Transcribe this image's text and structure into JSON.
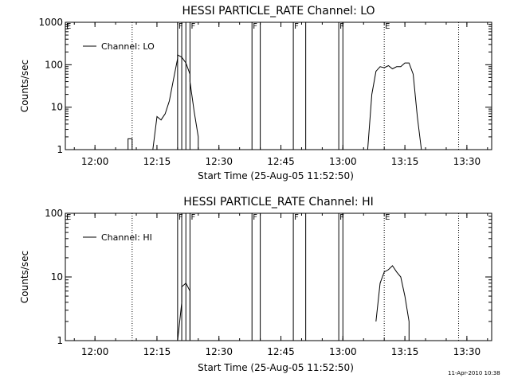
{
  "footer_stamp": "11-Apr-2010 10:38",
  "chart_data": [
    {
      "type": "line",
      "title": "HESSI PARTICLE_RATE Channel: LO",
      "xlabel": "Start Time (25-Aug-05 11:52:50)",
      "ylabel": "Counts/sec",
      "yscale": "log",
      "ylim": [
        1,
        1000
      ],
      "xlim": [
        "11:52:50",
        "13:36:00"
      ],
      "x_ticks": [
        "12:00",
        "12:15",
        "12:30",
        "12:45",
        "13:00",
        "13:15",
        "13:30"
      ],
      "y_ticks": [
        "1",
        "10",
        "100",
        "1000"
      ],
      "legend": {
        "label": "Channel: LO",
        "placement": "top-left"
      },
      "dotted_markers": [
        "12:09",
        "13:10",
        "13:28"
      ],
      "solid_markers": [
        "12:20",
        "12:21",
        "12:22",
        "12:23",
        "12:38",
        "12:40",
        "12:48",
        "12:51",
        "12:59",
        "13:00"
      ],
      "marker_labels": [
        {
          "text": "F",
          "time": "12:20"
        },
        {
          "text": "F",
          "time": "12:23"
        },
        {
          "text": "F",
          "time": "12:38"
        },
        {
          "text": "F",
          "time": "12:48"
        },
        {
          "text": "F",
          "time": "12:59"
        },
        {
          "text": "E",
          "time": "13:10"
        }
      ],
      "edge_labels": [
        {
          "text": "E",
          "side": "left"
        }
      ],
      "series": [
        {
          "segments": [
            [
              [
                "12:08",
                "1"
              ],
              [
                "12:08",
                "1.8"
              ],
              [
                "12:09",
                "1.8"
              ],
              [
                "12:09",
                "1.8"
              ],
              [
                "12:09",
                "1"
              ]
            ],
            [
              [
                "12:14",
                "1"
              ],
              [
                "12:15",
                "6"
              ],
              [
                "12:16",
                "5"
              ],
              [
                "12:17",
                "7"
              ],
              [
                "12:18",
                "14"
              ],
              [
                "12:19",
                "45"
              ],
              [
                "12:20",
                "140"
              ],
              [
                "12:20",
                "170"
              ],
              [
                "12:21",
                "150"
              ],
              [
                "12:22",
                "110"
              ],
              [
                "12:23",
                "60"
              ],
              [
                "12:23",
                "40"
              ],
              [
                "12:24",
                "8"
              ],
              [
                "12:25",
                "2"
              ],
              [
                "12:25",
                "1"
              ]
            ],
            [
              [
                "13:06",
                "1"
              ],
              [
                "13:07",
                "20"
              ],
              [
                "13:08",
                "70"
              ],
              [
                "13:09",
                "90"
              ],
              [
                "13:10",
                "85"
              ],
              [
                "13:11",
                "95"
              ],
              [
                "13:12",
                "80"
              ],
              [
                "13:13",
                "90"
              ],
              [
                "13:14",
                "90"
              ],
              [
                "13:15",
                "110"
              ],
              [
                "13:16",
                "110"
              ],
              [
                "13:17",
                "60"
              ],
              [
                "13:18",
                "6"
              ],
              [
                "13:19",
                "1"
              ]
            ]
          ]
        }
      ]
    },
    {
      "type": "line",
      "title": "HESSI PARTICLE_RATE Channel: HI",
      "xlabel": "Start Time (25-Aug-05 11:52:50)",
      "ylabel": "Counts/sec",
      "yscale": "log",
      "ylim": [
        1,
        100
      ],
      "xlim": [
        "11:52:50",
        "13:36:00"
      ],
      "x_ticks": [
        "12:00",
        "12:15",
        "12:30",
        "12:45",
        "13:00",
        "13:15",
        "13:30"
      ],
      "y_ticks": [
        "1",
        "10",
        "100"
      ],
      "legend": {
        "label": "Channel: HI",
        "placement": "top-left"
      },
      "dotted_markers": [
        "12:09",
        "13:10",
        "13:28"
      ],
      "solid_markers": [
        "12:20",
        "12:21",
        "12:22",
        "12:23",
        "12:38",
        "12:40",
        "12:48",
        "12:51",
        "12:59",
        "13:00"
      ],
      "marker_labels": [
        {
          "text": "F",
          "time": "12:20"
        },
        {
          "text": "F",
          "time": "12:23"
        },
        {
          "text": "F",
          "time": "12:38"
        },
        {
          "text": "F",
          "time": "12:48"
        },
        {
          "text": "F",
          "time": "12:59"
        },
        {
          "text": "E",
          "time": "13:10"
        }
      ],
      "edge_labels": [
        {
          "text": "E",
          "side": "left"
        }
      ],
      "series": [
        {
          "segments": [
            [
              [
                "12:20",
                "1"
              ],
              [
                "12:21",
                "4"
              ],
              [
                "12:21",
                "7"
              ],
              [
                "12:22",
                "8"
              ],
              [
                "12:23",
                "6"
              ],
              [
                "12:23",
                "2"
              ],
              [
                "12:23",
                "1"
              ]
            ],
            [
              [
                "13:08",
                "2"
              ],
              [
                "13:09",
                "8"
              ],
              [
                "13:10",
                "12"
              ],
              [
                "13:11",
                "13"
              ],
              [
                "13:12",
                "15"
              ],
              [
                "13:13",
                "12"
              ],
              [
                "13:14",
                "10"
              ],
              [
                "13:15",
                "5"
              ],
              [
                "13:16",
                "2"
              ],
              [
                "13:16",
                "1"
              ]
            ]
          ]
        }
      ]
    }
  ]
}
